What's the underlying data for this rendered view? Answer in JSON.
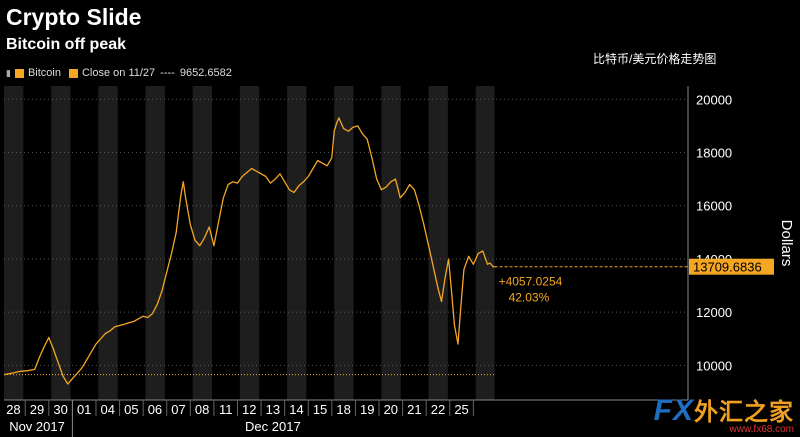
{
  "title": "Crypto Slide",
  "subtitle": "Bitcoin off peak",
  "caption_cn": "比特币/美元价格走势图",
  "legend": {
    "series_name": "Bitcoin",
    "close_label": "Close on 11/27",
    "close_dashes": "----",
    "close_value": "9652.6582"
  },
  "annotations": {
    "last_price": "13709.6836",
    "change_abs": "+4057.0254",
    "change_pct": "42.03%"
  },
  "watermark": {
    "fx": "FX",
    "cn": "外汇之家",
    "url": "www.fx68.com"
  },
  "colors": {
    "line": "#f5a623",
    "background": "#000000",
    "band": "#1e1e1e",
    "grid": "#555555"
  },
  "chart_data": {
    "type": "line",
    "ylabel": "Dollars",
    "ylim": [
      8700,
      20500
    ],
    "y_ticks": [
      10000,
      12000,
      14000,
      16000,
      18000,
      20000
    ],
    "y_tick_labels": [
      "10000",
      "12000",
      "14000",
      "16000",
      "18000",
      "20000"
    ],
    "x_range": [
      -0.4,
      28.6
    ],
    "x_ticks": [
      {
        "d": 0,
        "label": "28"
      },
      {
        "d": 1,
        "label": "29"
      },
      {
        "d": 2,
        "label": "30"
      },
      {
        "d": 3,
        "label": "01"
      },
      {
        "d": 4,
        "label": "04"
      },
      {
        "d": 5,
        "label": "05"
      },
      {
        "d": 6,
        "label": "06"
      },
      {
        "d": 7,
        "label": "07"
      },
      {
        "d": 8,
        "label": "08"
      },
      {
        "d": 9,
        "label": "11"
      },
      {
        "d": 10,
        "label": "12"
      },
      {
        "d": 11,
        "label": "13"
      },
      {
        "d": 12,
        "label": "14"
      },
      {
        "d": 13,
        "label": "15"
      },
      {
        "d": 14,
        "label": "18"
      },
      {
        "d": 15,
        "label": "19"
      },
      {
        "d": 16,
        "label": "20"
      },
      {
        "d": 17,
        "label": "21"
      },
      {
        "d": 18,
        "label": "22"
      },
      {
        "d": 19,
        "label": "25"
      }
    ],
    "month_labels": [
      {
        "d": 1,
        "label": "Nov 2017"
      },
      {
        "d": 11,
        "label": "Dec 2017"
      }
    ],
    "shaded_bands": [
      [
        -0.4,
        0.42
      ],
      [
        1.6,
        2.42
      ],
      [
        3.6,
        4.42
      ],
      [
        5.6,
        6.42
      ],
      [
        7.6,
        8.42
      ],
      [
        9.6,
        10.42
      ],
      [
        11.6,
        12.42
      ],
      [
        13.6,
        14.42
      ],
      [
        15.6,
        16.42
      ],
      [
        17.6,
        18.42
      ],
      [
        19.6,
        20.4
      ]
    ],
    "reference_line": 9652.6582,
    "last_value": 13709.6836,
    "series": [
      {
        "values": [
          [
            -0.4,
            9650
          ],
          [
            0.0,
            9720
          ],
          [
            0.3,
            9780
          ],
          [
            0.6,
            9800
          ],
          [
            0.9,
            9850
          ],
          [
            1.1,
            10300
          ],
          [
            1.3,
            10700
          ],
          [
            1.5,
            11050
          ],
          [
            1.7,
            10600
          ],
          [
            1.9,
            10100
          ],
          [
            2.1,
            9600
          ],
          [
            2.3,
            9300
          ],
          [
            2.5,
            9500
          ],
          [
            2.7,
            9700
          ],
          [
            2.9,
            9900
          ],
          [
            3.1,
            10200
          ],
          [
            3.3,
            10500
          ],
          [
            3.5,
            10800
          ],
          [
            3.7,
            11000
          ],
          [
            3.9,
            11200
          ],
          [
            4.1,
            11300
          ],
          [
            4.3,
            11450
          ],
          [
            4.5,
            11500
          ],
          [
            4.7,
            11550
          ],
          [
            4.9,
            11600
          ],
          [
            5.1,
            11650
          ],
          [
            5.3,
            11750
          ],
          [
            5.5,
            11850
          ],
          [
            5.7,
            11800
          ],
          [
            5.9,
            11950
          ],
          [
            6.1,
            12300
          ],
          [
            6.3,
            12800
          ],
          [
            6.5,
            13500
          ],
          [
            6.7,
            14200
          ],
          [
            6.9,
            15000
          ],
          [
            7.0,
            15700
          ],
          [
            7.1,
            16400
          ],
          [
            7.2,
            16900
          ],
          [
            7.3,
            16300
          ],
          [
            7.5,
            15300
          ],
          [
            7.7,
            14700
          ],
          [
            7.9,
            14500
          ],
          [
            8.1,
            14800
          ],
          [
            8.3,
            15200
          ],
          [
            8.5,
            14500
          ],
          [
            8.7,
            15400
          ],
          [
            8.9,
            16300
          ],
          [
            9.1,
            16800
          ],
          [
            9.3,
            16900
          ],
          [
            9.5,
            16850
          ],
          [
            9.7,
            17100
          ],
          [
            9.9,
            17250
          ],
          [
            10.1,
            17400
          ],
          [
            10.3,
            17300
          ],
          [
            10.5,
            17200
          ],
          [
            10.7,
            17100
          ],
          [
            10.9,
            16850
          ],
          [
            11.1,
            17000
          ],
          [
            11.3,
            17200
          ],
          [
            11.5,
            16900
          ],
          [
            11.7,
            16600
          ],
          [
            11.9,
            16500
          ],
          [
            12.1,
            16750
          ],
          [
            12.3,
            16900
          ],
          [
            12.5,
            17100
          ],
          [
            12.7,
            17400
          ],
          [
            12.9,
            17700
          ],
          [
            13.1,
            17600
          ],
          [
            13.3,
            17500
          ],
          [
            13.5,
            17800
          ],
          [
            13.6,
            18800
          ],
          [
            13.7,
            19100
          ],
          [
            13.8,
            19300
          ],
          [
            14.0,
            18900
          ],
          [
            14.2,
            18800
          ],
          [
            14.4,
            18950
          ],
          [
            14.6,
            19000
          ],
          [
            14.8,
            18700
          ],
          [
            15.0,
            18500
          ],
          [
            15.2,
            17800
          ],
          [
            15.4,
            17000
          ],
          [
            15.6,
            16600
          ],
          [
            15.8,
            16700
          ],
          [
            16.0,
            16900
          ],
          [
            16.2,
            17000
          ],
          [
            16.4,
            16300
          ],
          [
            16.6,
            16500
          ],
          [
            16.8,
            16800
          ],
          [
            17.0,
            16600
          ],
          [
            17.2,
            16000
          ],
          [
            17.4,
            15300
          ],
          [
            17.6,
            14500
          ],
          [
            17.8,
            13700
          ],
          [
            18.0,
            12900
          ],
          [
            18.15,
            12400
          ],
          [
            18.3,
            13300
          ],
          [
            18.45,
            14000
          ],
          [
            18.55,
            13000
          ],
          [
            18.7,
            11500
          ],
          [
            18.85,
            10800
          ],
          [
            18.95,
            12000
          ],
          [
            19.1,
            13600
          ],
          [
            19.3,
            14100
          ],
          [
            19.5,
            13800
          ],
          [
            19.7,
            14200
          ],
          [
            19.9,
            14300
          ],
          [
            20.1,
            13800
          ],
          [
            20.2,
            13850
          ],
          [
            20.35,
            13700
          ],
          [
            20.4,
            13709.68
          ]
        ]
      }
    ]
  }
}
